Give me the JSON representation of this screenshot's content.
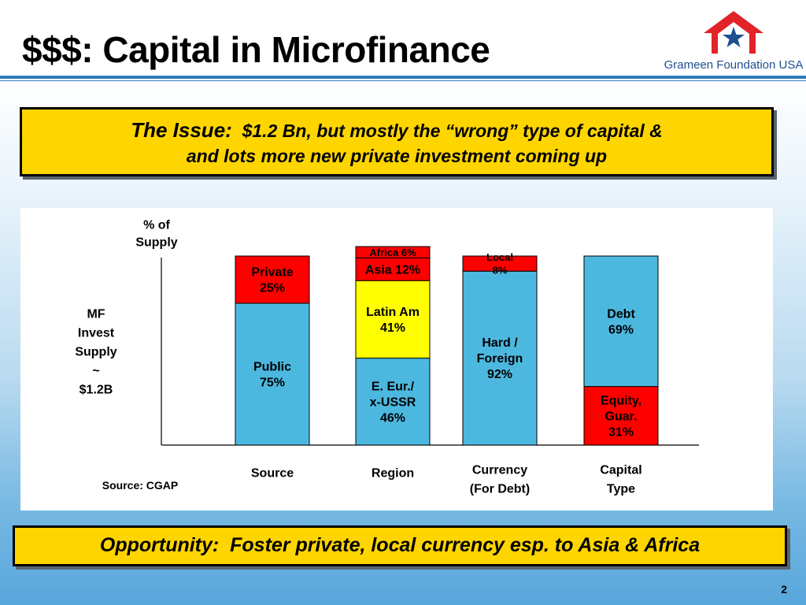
{
  "slide": {
    "title": "$$$: Capital in Microfinance",
    "logo_text": "Grameen Foundation USA",
    "page_number": "2"
  },
  "issue": {
    "lead": "The Issue:",
    "line1": "$1.2 Bn, but mostly the “wrong” type of capital &",
    "line2": "and lots more new private investment coming up"
  },
  "opportunity": {
    "lead": "Opportunity:",
    "text": "Foster private, local currency esp. to Asia & Africa"
  },
  "colors": {
    "red": "#ff0000",
    "blue": "#4db8df",
    "yellow": "#ffff00",
    "callout": "#ffd500",
    "brand": "#1d4f91",
    "logo_red": "#e2232a"
  },
  "chart_data": {
    "type": "bar",
    "stacked": true,
    "ylabel": [
      "% of",
      "Supply"
    ],
    "left_annotation": [
      "MF",
      "Invest",
      "Supply",
      "~",
      "$1.2B"
    ],
    "source": "Source: CGAP",
    "ylim": [
      0,
      100
    ],
    "bars": [
      {
        "category": [
          "Source"
        ],
        "segments": [
          {
            "value": 75,
            "color": "blue",
            "label": [
              "Public",
              "75%"
            ]
          },
          {
            "value": 25,
            "color": "red",
            "label": [
              "Private",
              "25%"
            ]
          }
        ]
      },
      {
        "category": [
          "Region"
        ],
        "segments": [
          {
            "value": 46,
            "color": "blue",
            "label": [
              "E. Eur./",
              "x-USSR",
              "46%"
            ]
          },
          {
            "value": 41,
            "color": "yellow",
            "label": [
              "Latin Am",
              "41%"
            ]
          },
          {
            "value": 12,
            "color": "red",
            "label": [
              "Asia 12%"
            ]
          },
          {
            "value": 6,
            "color": "red",
            "label": [
              "Africa 6%"
            ]
          }
        ]
      },
      {
        "category": [
          "Currency",
          "(For Debt)"
        ],
        "segments": [
          {
            "value": 92,
            "color": "blue",
            "label": [
              "Hard /",
              "Foreign",
              "92%"
            ]
          },
          {
            "value": 8,
            "color": "red",
            "label": [
              "Local",
              "8%"
            ]
          }
        ]
      },
      {
        "category": [
          "Capital",
          "Type"
        ],
        "segments": [
          {
            "value": 31,
            "color": "red",
            "label": [
              "Equity,",
              "Guar.",
              "31%"
            ]
          },
          {
            "value": 69,
            "color": "blue",
            "label": [
              "Debt",
              "69%"
            ]
          }
        ]
      }
    ]
  }
}
